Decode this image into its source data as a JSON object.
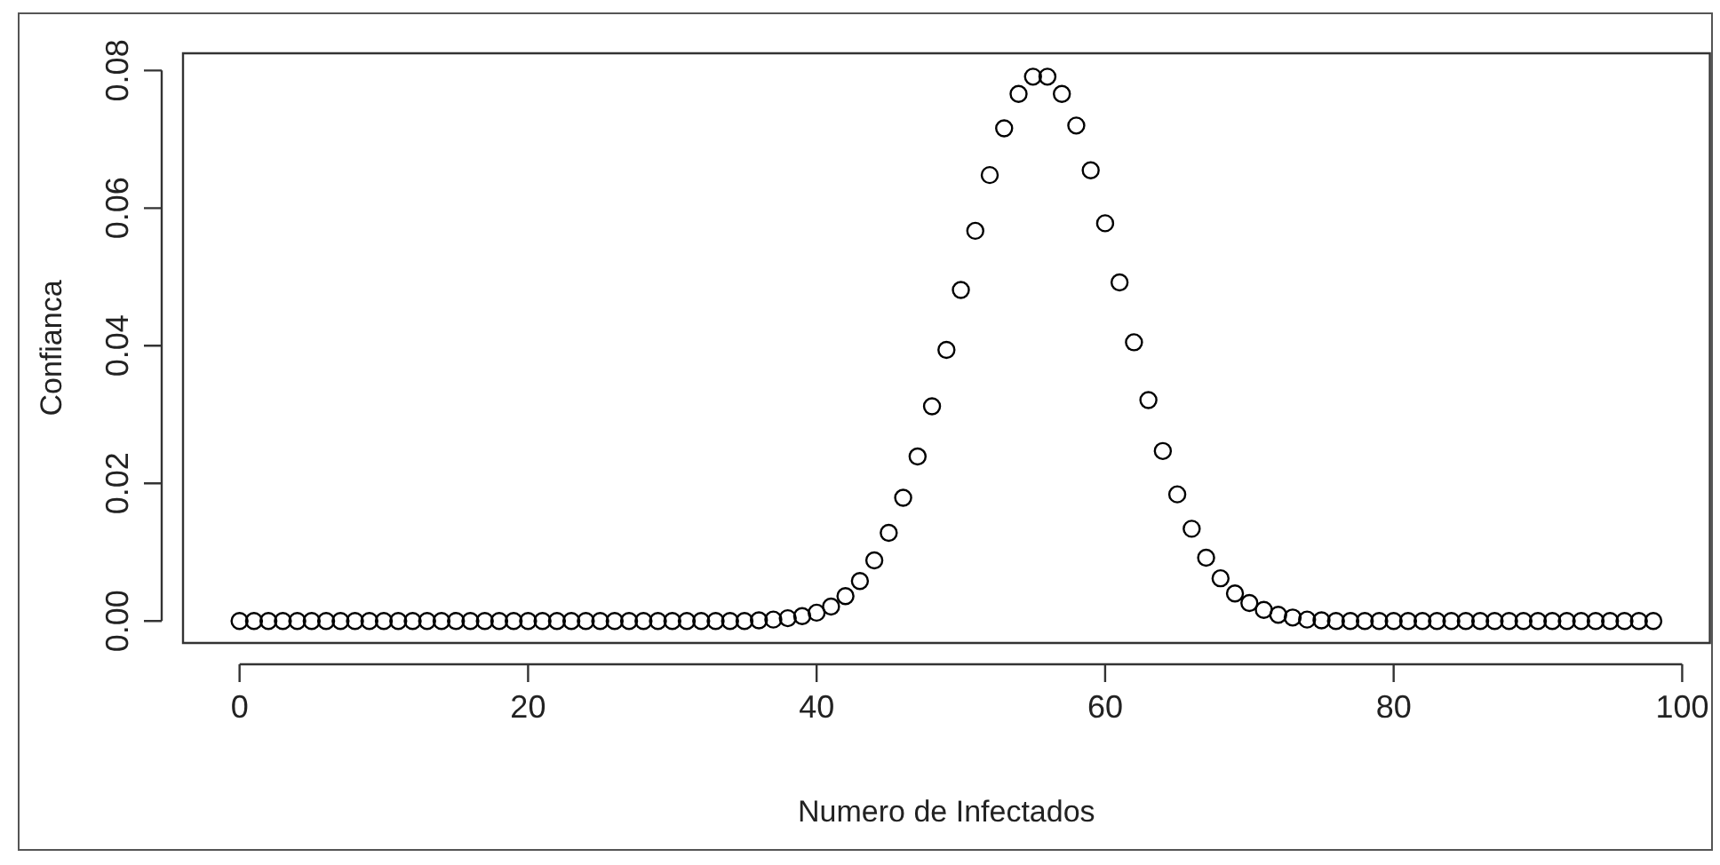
{
  "chart_data": {
    "type": "scatter",
    "xlabel": "Numero de Infectados",
    "ylabel": "Confianca",
    "x": [
      0,
      1,
      2,
      3,
      4,
      5,
      6,
      7,
      8,
      9,
      10,
      11,
      12,
      13,
      14,
      15,
      16,
      17,
      18,
      19,
      20,
      21,
      22,
      23,
      24,
      25,
      26,
      27,
      28,
      29,
      30,
      31,
      32,
      33,
      34,
      35,
      36,
      37,
      38,
      39,
      40,
      41,
      42,
      43,
      44,
      45,
      46,
      47,
      48,
      49,
      50,
      51,
      52,
      53,
      54,
      55,
      56,
      57,
      58,
      59,
      60,
      61,
      62,
      63,
      64,
      65,
      66,
      67,
      68,
      69,
      70,
      71,
      72,
      73,
      74,
      75,
      76,
      77,
      78,
      79,
      80,
      81,
      82,
      83,
      84,
      85,
      86,
      87,
      88,
      89,
      90,
      91,
      92,
      93,
      94,
      95,
      96,
      97,
      98
    ],
    "series": [
      {
        "color": "#000000",
        "values": [
          0,
          0,
          0,
          0,
          0,
          0,
          0,
          0,
          0,
          0,
          0,
          0,
          0,
          0,
          0,
          0,
          0,
          0,
          0,
          0,
          0,
          0,
          0,
          0,
          0,
          0,
          0,
          0,
          0,
          0,
          0,
          0,
          0,
          0,
          0,
          0,
          0.0001,
          0.0002,
          0.0004,
          0.0007,
          0.0012,
          0.0021,
          0.0036,
          0.0058,
          0.0088,
          0.0128,
          0.0179,
          0.0239,
          0.0312,
          0.0394,
          0.0481,
          0.0567,
          0.0648,
          0.0716,
          0.0766,
          0.0791,
          0.0791,
          0.0766,
          0.072,
          0.0655,
          0.0578,
          0.0492,
          0.0405,
          0.0321,
          0.0247,
          0.0184,
          0.0134,
          0.0092,
          0.0062,
          0.004,
          0.0026,
          0.0016,
          0.0009,
          0.0005,
          0.0002,
          0.0001,
          0,
          0,
          0,
          0,
          0,
          0,
          0,
          0,
          0,
          0,
          0,
          0,
          0,
          0,
          0,
          0,
          0,
          0,
          0,
          0,
          0,
          0,
          0
        ]
      }
    ],
    "xlim": [
      -3.92,
      101.92
    ],
    "ylim": [
      -0.0032,
      0.0825
    ],
    "xticks": [
      0,
      20,
      40,
      60,
      80,
      100
    ],
    "yticks": [
      {
        "value": 0,
        "label": "0.00"
      },
      {
        "value": 0.02,
        "label": "0.02"
      },
      {
        "value": 0.04,
        "label": "0.04"
      },
      {
        "value": 0.06,
        "label": "0.06"
      },
      {
        "value": 0.08,
        "label": "0.08"
      }
    ],
    "legend": false,
    "marker": "circle"
  }
}
